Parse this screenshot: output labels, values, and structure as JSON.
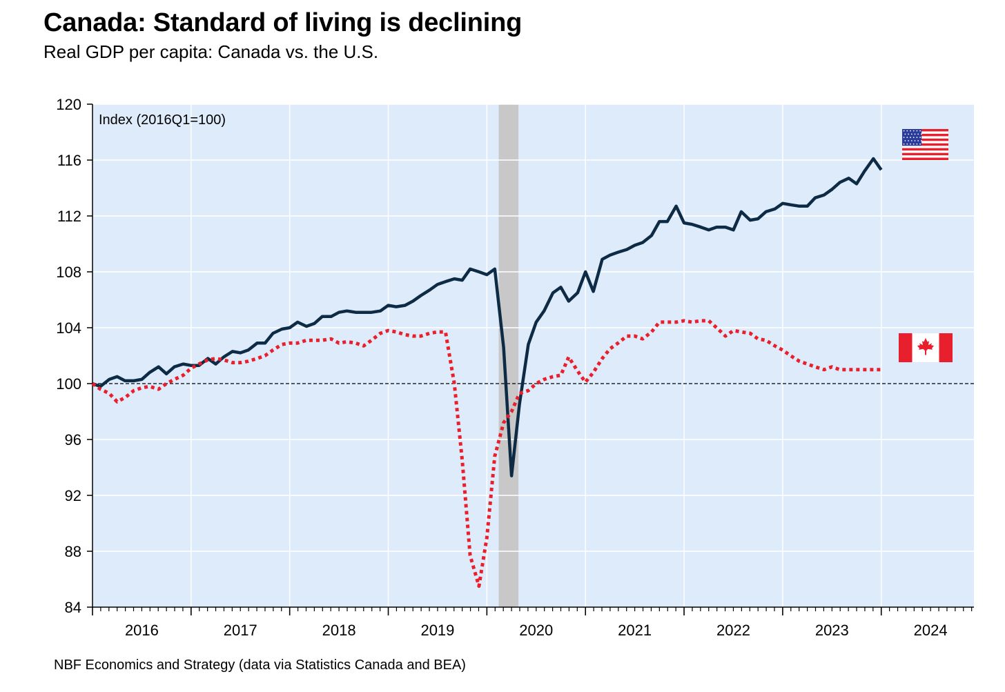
{
  "header": {
    "title": "Canada: Standard of living is declining",
    "subtitle": "Real GDP per capita: Canada vs. the U.S."
  },
  "footer": {
    "source": "NBF Economics and Strategy (data via Statistics Canada and BEA)"
  },
  "chart_data": {
    "type": "line",
    "title": "Canada: Standard of living is declining",
    "subtitle": "Real GDP per capita: Canada vs. the U.S.",
    "annotation": "Index (2016Q1=100)",
    "ylim": [
      84,
      120
    ],
    "yticks": [
      84,
      88,
      92,
      96,
      100,
      104,
      108,
      112,
      116,
      120
    ],
    "xlim": [
      2016.0,
      2024.94
    ],
    "xtick_labels": [
      "2016",
      "2017",
      "2018",
      "2019",
      "2020",
      "2021",
      "2022",
      "2023",
      "2024"
    ],
    "grid": true,
    "background_color": "#deebfb",
    "reference_line": 100,
    "recession_band": [
      2020.12,
      2020.32
    ],
    "legend": "flag icons at right end of series",
    "series": [
      {
        "flag": "united-states-flag",
        "color": "#0d2b45",
        "style": "solid",
        "x": [
          2016.0,
          2016.08,
          2016.17,
          2016.25,
          2016.33,
          2016.42,
          2016.5,
          2016.58,
          2016.67,
          2016.75,
          2016.83,
          2016.92,
          2017.0,
          2017.08,
          2017.17,
          2017.25,
          2017.33,
          2017.42,
          2017.5,
          2017.58,
          2017.67,
          2017.75,
          2017.83,
          2017.92,
          2018.0,
          2018.08,
          2018.17,
          2018.25,
          2018.33,
          2018.42,
          2018.5,
          2018.58,
          2018.67,
          2018.75,
          2018.83,
          2018.92,
          2019.0,
          2019.08,
          2019.17,
          2019.25,
          2019.33,
          2019.42,
          2019.5,
          2019.58,
          2019.67,
          2019.75,
          2019.83,
          2019.92,
          2020.0,
          2020.08,
          2020.17,
          2020.25,
          2020.33,
          2020.42,
          2020.5,
          2020.58,
          2020.67,
          2020.75,
          2020.83,
          2020.92,
          2021.0,
          2021.08,
          2021.17,
          2021.25,
          2021.33,
          2021.42,
          2021.5,
          2021.58,
          2021.67,
          2021.75,
          2021.83,
          2021.92,
          2022.0,
          2022.08,
          2022.17,
          2022.25,
          2022.33,
          2022.42,
          2022.5,
          2022.58,
          2022.67,
          2022.75,
          2022.83,
          2022.92,
          2023.0,
          2023.08,
          2023.17,
          2023.25,
          2023.33,
          2023.42,
          2023.5,
          2023.58,
          2023.67,
          2023.75,
          2023.83,
          2023.92,
          2024.0
        ],
        "values": [
          100.0,
          99.8,
          100.3,
          100.5,
          100.2,
          100.2,
          100.3,
          100.8,
          101.2,
          100.7,
          101.2,
          101.4,
          101.3,
          101.3,
          101.8,
          101.4,
          101.9,
          102.3,
          102.2,
          102.4,
          102.9,
          102.9,
          103.6,
          103.9,
          104.0,
          104.4,
          104.1,
          104.3,
          104.8,
          104.8,
          105.1,
          105.2,
          105.1,
          105.1,
          105.1,
          105.2,
          105.6,
          105.5,
          105.6,
          105.9,
          106.3,
          106.7,
          107.1,
          107.3,
          107.5,
          107.4,
          108.2,
          108.0,
          107.8,
          108.2,
          102.6,
          93.4,
          98.5,
          102.8,
          104.4,
          105.2,
          106.5,
          106.9,
          105.9,
          106.5,
          108.0,
          106.6,
          108.9,
          109.2,
          109.4,
          109.6,
          109.9,
          110.1,
          110.6,
          111.6,
          111.6,
          112.7,
          111.5,
          111.4,
          111.2,
          111.0,
          111.2,
          111.2,
          111.0,
          112.3,
          111.7,
          111.8,
          112.3,
          112.5,
          112.9,
          112.8,
          112.7,
          112.7,
          113.3,
          113.5,
          113.9,
          114.4,
          114.7,
          114.3,
          115.2,
          116.1,
          115.3
        ]
      },
      {
        "flag": "canada-flag",
        "color": "#e8202d",
        "style": "dotted",
        "x": [
          2016.0,
          2016.08,
          2016.17,
          2016.25,
          2016.33,
          2016.42,
          2016.5,
          2016.58,
          2016.67,
          2016.75,
          2016.83,
          2016.92,
          2017.0,
          2017.08,
          2017.17,
          2017.25,
          2017.33,
          2017.42,
          2017.5,
          2017.58,
          2017.67,
          2017.75,
          2017.83,
          2017.92,
          2018.0,
          2018.08,
          2018.17,
          2018.25,
          2018.33,
          2018.42,
          2018.5,
          2018.58,
          2018.67,
          2018.75,
          2018.83,
          2018.92,
          2019.0,
          2019.08,
          2019.17,
          2019.25,
          2019.33,
          2019.42,
          2019.5,
          2019.58,
          2019.67,
          2019.75,
          2019.83,
          2019.92,
          2020.0,
          2020.08,
          2020.17,
          2020.25,
          2020.33,
          2020.42,
          2020.5,
          2020.58,
          2020.67,
          2020.75,
          2020.83,
          2020.92,
          2021.0,
          2021.08,
          2021.17,
          2021.25,
          2021.33,
          2021.42,
          2021.5,
          2021.58,
          2021.67,
          2021.75,
          2021.83,
          2021.92,
          2022.0,
          2022.08,
          2022.17,
          2022.25,
          2022.33,
          2022.42,
          2022.5,
          2022.58,
          2022.67,
          2022.75,
          2022.83,
          2022.92,
          2023.0,
          2023.08,
          2023.17,
          2023.25,
          2023.33,
          2023.42,
          2023.5,
          2023.58,
          2023.67,
          2023.75,
          2023.83,
          2023.92,
          2024.0
        ],
        "values": [
          100.0,
          99.6,
          99.3,
          98.7,
          99.0,
          99.5,
          99.7,
          99.8,
          99.6,
          100.0,
          100.3,
          100.6,
          101.1,
          101.4,
          101.7,
          101.8,
          101.7,
          101.5,
          101.5,
          101.6,
          101.8,
          102.0,
          102.4,
          102.8,
          102.9,
          102.9,
          103.1,
          103.1,
          103.1,
          103.2,
          102.9,
          103.0,
          102.9,
          102.7,
          103.1,
          103.6,
          103.8,
          103.7,
          103.5,
          103.4,
          103.4,
          103.6,
          103.7,
          103.7,
          100.0,
          94.5,
          87.7,
          85.5,
          89.0,
          94.8,
          97.2,
          98.0,
          99.3,
          99.5,
          100.0,
          100.3,
          100.5,
          100.6,
          101.9,
          100.9,
          100.1,
          100.8,
          101.8,
          102.5,
          102.9,
          103.4,
          103.4,
          103.2,
          103.7,
          104.4,
          104.4,
          104.4,
          104.5,
          104.4,
          104.5,
          104.5,
          104.0,
          103.4,
          103.8,
          103.7,
          103.6,
          103.2,
          103.1,
          102.7,
          102.4,
          102.0,
          101.6,
          101.4,
          101.2,
          101.0,
          101.2,
          101.0,
          101.0,
          101.0,
          101.0,
          101.0,
          101.0
        ]
      }
    ]
  }
}
